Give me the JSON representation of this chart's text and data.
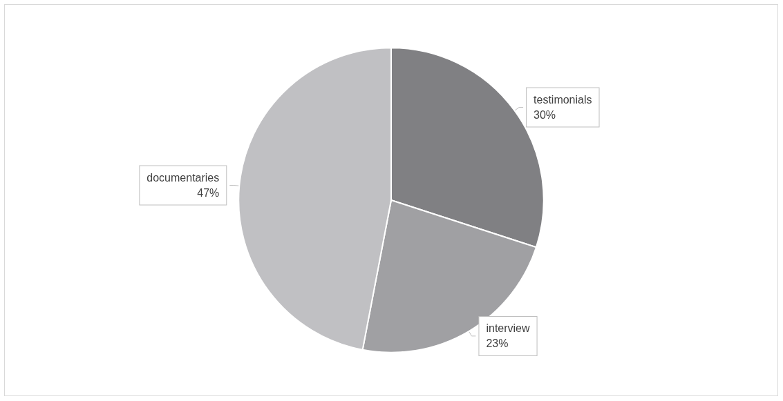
{
  "chart_data": {
    "type": "pie",
    "categories": [
      "testimonials",
      "interview",
      "documentaries"
    ],
    "values": [
      30,
      23,
      47
    ],
    "colors": [
      "#808083",
      "#a0a0a3",
      "#c0c0c3"
    ],
    "value_labels": [
      "30%",
      "23%",
      "47%"
    ],
    "legend": false
  }
}
